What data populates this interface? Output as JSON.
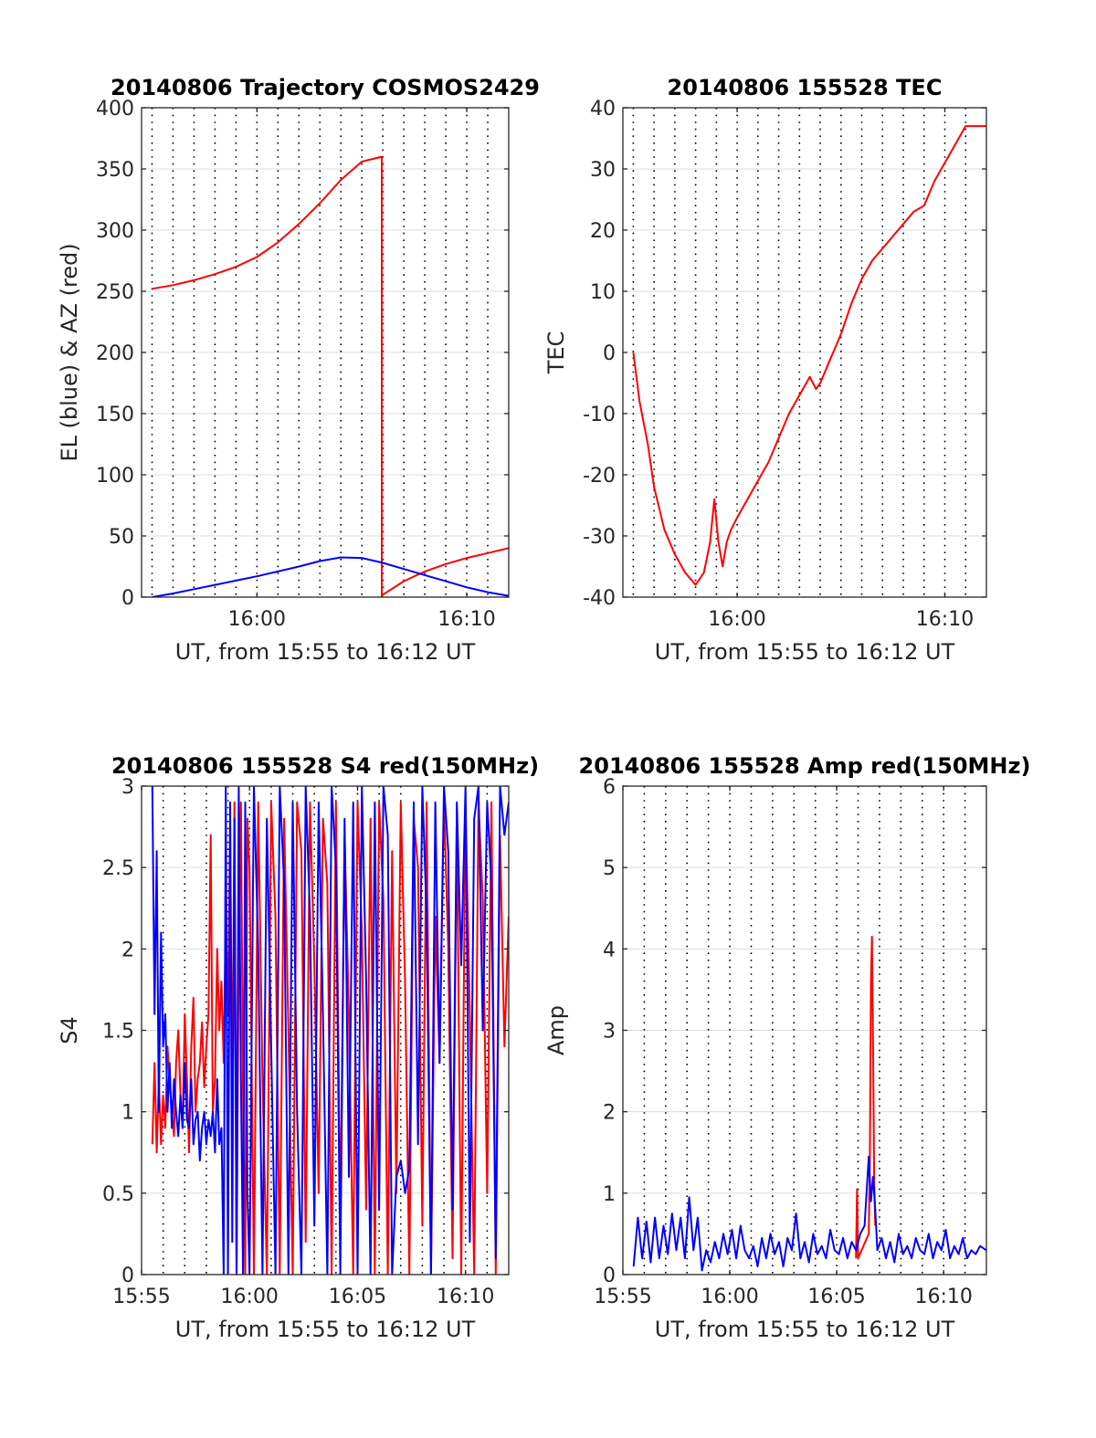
{
  "chart_data": [
    {
      "type": "line",
      "title": "20140806 Trajectory COSMOS2429",
      "xlabel": "UT, from 15:55 to 16:12 UT",
      "ylabel": "EL (blue) & AZ (red)",
      "xlim": [
        -0.5,
        17
      ],
      "ylim": [
        0,
        400
      ],
      "xticks": [
        5,
        15
      ],
      "xtick_labels": [
        "16:00",
        "16:10"
      ],
      "yticks": [
        0,
        50,
        100,
        150,
        200,
        250,
        300,
        350,
        400
      ],
      "ytick_labels": [
        "0",
        "50",
        "100",
        "150",
        "200",
        "250",
        "300",
        "350",
        "400"
      ],
      "grid": true,
      "series": [
        {
          "name": "AZ",
          "color": "#ff0000",
          "x": [
            0,
            1,
            2,
            3,
            4,
            5,
            6,
            7,
            8,
            9,
            10,
            10.95,
            10.95,
            11,
            12,
            13,
            14,
            15,
            16,
            17
          ],
          "y": [
            252,
            255,
            259,
            264,
            270,
            278,
            290,
            305,
            322,
            341,
            356,
            360,
            0,
            2,
            13,
            21,
            27,
            32,
            36,
            40
          ]
        },
        {
          "name": "EL",
          "color": "#0000ff",
          "x": [
            0,
            1,
            2,
            3,
            4,
            5,
            6,
            7,
            8,
            9,
            10,
            11,
            12,
            13,
            14,
            15,
            16,
            17
          ],
          "y": [
            0,
            3,
            6.5,
            10,
            13.5,
            17,
            21,
            25,
            29.5,
            32.5,
            32,
            28,
            23,
            18,
            13,
            8,
            4,
            1
          ]
        }
      ]
    },
    {
      "type": "line",
      "title": "20140806 155528 TEC",
      "xlabel": "UT, from 15:55 to 16:12 UT",
      "ylabel": "TEC",
      "xlim": [
        -0.5,
        17
      ],
      "ylim": [
        -40,
        40
      ],
      "xticks": [
        5,
        15
      ],
      "xtick_labels": [
        "16:00",
        "16:10"
      ],
      "yticks": [
        -40,
        -30,
        -20,
        -10,
        0,
        10,
        20,
        30,
        40
      ],
      "ytick_labels": [
        "-40",
        "-30",
        "-20",
        "-10",
        "0",
        "10",
        "20",
        "30",
        "40"
      ],
      "grid": true,
      "series": [
        {
          "color": "#ff0000",
          "x": [
            0,
            0.3,
            0.7,
            1.0,
            1.5,
            2.0,
            2.5,
            3.0,
            3.4,
            3.7,
            3.9,
            4.1,
            4.3,
            4.5,
            4.7,
            5.0,
            5.5,
            6.0,
            6.5,
            7.0,
            7.5,
            8.0,
            8.5,
            8.8,
            9.0,
            9.5,
            10.0,
            10.5,
            11.0,
            11.5,
            12.0,
            12.5,
            13.0,
            13.5,
            14.0,
            14.5,
            15.0,
            15.5,
            16.0,
            16.5,
            17.0
          ],
          "y": [
            0,
            -8,
            -15,
            -22,
            -29,
            -33,
            -36,
            -38,
            -36,
            -31,
            -24,
            -31,
            -35,
            -31,
            -29,
            -27,
            -24,
            -21,
            -18,
            -14,
            -10,
            -7,
            -4,
            -6,
            -5,
            -1,
            3,
            8,
            12,
            15,
            17,
            19,
            21,
            23,
            24,
            28,
            31,
            34,
            37,
            37,
            37
          ]
        }
      ]
    },
    {
      "type": "line",
      "title": "20140806 155528 S4 red(150MHz)",
      "xlabel": "UT, from 15:55 to 16:12 UT",
      "ylabel": "S4",
      "xlim": [
        0,
        17
      ],
      "ylim": [
        0,
        3
      ],
      "xticks": [
        0,
        5,
        10,
        15
      ],
      "xtick_labels": [
        "15:55",
        "16:00",
        "16:05",
        "16:10"
      ],
      "yticks": [
        0,
        0.5,
        1,
        1.5,
        2,
        2.5,
        3
      ],
      "ytick_labels": [
        "0",
        "0.5",
        "1",
        "1.5",
        "2",
        "2.5",
        "3"
      ],
      "grid": true,
      "series": [
        {
          "color": "#ff0000",
          "x": [
            0.5,
            0.6,
            0.7,
            0.8,
            0.9,
            1.0,
            1.1,
            1.2,
            1.3,
            1.4,
            1.5,
            1.6,
            1.7,
            1.8,
            1.9,
            2.0,
            2.1,
            2.2,
            2.3,
            2.4,
            2.5,
            2.6,
            2.7,
            2.8,
            2.9,
            3.0,
            3.1,
            3.2,
            3.3,
            3.4,
            3.5,
            3.6,
            3.7,
            3.8,
            3.9,
            4.0,
            4.1,
            4.2,
            4.3,
            4.4,
            4.5,
            4.6,
            4.7,
            4.8,
            4.9,
            5.0,
            5.2,
            5.4,
            5.6,
            5.8,
            6.0,
            6.2,
            6.4,
            6.6,
            6.8,
            7.0,
            7.2,
            7.4,
            7.6,
            7.8,
            8.0,
            8.2,
            8.4,
            8.6,
            8.8,
            9.0,
            9.2,
            9.4,
            9.6,
            9.8,
            10.0,
            10.2,
            10.4,
            10.6,
            10.8,
            11.0,
            11.2,
            11.4,
            11.6,
            11.8,
            12.0,
            12.2,
            12.4,
            12.6,
            12.8,
            13.0,
            13.2,
            13.4,
            13.6,
            13.8,
            14.0,
            14.2,
            14.4,
            14.6,
            14.8,
            15.0,
            15.2,
            15.4,
            15.6,
            15.8,
            16.0,
            16.2,
            16.4,
            16.6,
            16.8,
            17.0
          ],
          "y": [
            0.8,
            1.3,
            0.75,
            1.2,
            0.8,
            1.1,
            0.9,
            1.4,
            1.2,
            1.0,
            0.85,
            1.3,
            1.5,
            1.1,
            0.9,
            1.6,
            1.2,
            0.75,
            1.4,
            1.7,
            1.0,
            1.2,
            1.3,
            1.55,
            1.15,
            1.4,
            1.6,
            2.7,
            1.0,
            1.2,
            2.0,
            1.5,
            1.8,
            1.3,
            2.2,
            1.6,
            2.8,
            1.0,
            2.9,
            0,
            2.0,
            2.9,
            1.1,
            0,
            2.8,
            2.5,
            0,
            2.9,
            1.2,
            0,
            2.9,
            2.2,
            0,
            2.8,
            1.5,
            0,
            2.9,
            2.6,
            0.2,
            2.9,
            1.9,
            0.5,
            2.8,
            2.4,
            0,
            2.9,
            0.3,
            2.7,
            1.6,
            0,
            2.9,
            2.1,
            0.4,
            2.8,
            0,
            2.9,
            2.3,
            0,
            2.6,
            0.5,
            2.9,
            1.8,
            0,
            2.8,
            2.5,
            0.3,
            2.9,
            0,
            2.2,
            1.3,
            2.9,
            2.0,
            0.1,
            2.8,
            0,
            2.9,
            1.6,
            0,
            2.9,
            2.3,
            0.5,
            2.9,
            0,
            2.7,
            1.4,
            2.2
          ]
        },
        {
          "color": "#0000ff",
          "x": [
            0.5,
            0.6,
            0.7,
            0.8,
            0.9,
            1.0,
            1.1,
            1.2,
            1.3,
            1.4,
            1.5,
            1.6,
            1.7,
            1.8,
            1.9,
            2.0,
            2.1,
            2.2,
            2.3,
            2.4,
            2.5,
            2.6,
            2.7,
            2.8,
            2.9,
            3.0,
            3.1,
            3.2,
            3.3,
            3.4,
            3.5,
            3.6,
            3.7,
            3.8,
            3.9,
            4.0,
            4.1,
            4.2,
            4.3,
            4.4,
            4.5,
            4.6,
            4.7,
            4.8,
            4.9,
            5.0,
            5.2,
            5.4,
            5.6,
            5.8,
            6.0,
            6.2,
            6.4,
            6.6,
            6.8,
            7.0,
            7.2,
            7.4,
            7.6,
            7.8,
            8.0,
            8.2,
            8.4,
            8.6,
            8.8,
            9.0,
            9.2,
            9.4,
            9.6,
            9.8,
            10.0,
            10.2,
            10.4,
            10.6,
            10.8,
            11.0,
            11.2,
            11.4,
            11.6,
            11.8,
            12.0,
            12.2,
            12.4,
            12.6,
            12.8,
            13.0,
            13.2,
            13.4,
            13.6,
            13.8,
            14.0,
            14.2,
            14.4,
            14.6,
            14.8,
            15.0,
            15.2,
            15.4,
            15.6,
            15.8,
            16.0,
            16.2,
            16.4,
            16.6,
            16.8,
            17.0
          ],
          "y": [
            3.0,
            1.6,
            2.6,
            1.0,
            2.1,
            1.4,
            1.6,
            1.0,
            1.3,
            0.9,
            1.2,
            1.0,
            0.85,
            1.1,
            0.9,
            1.3,
            0.95,
            0.9,
            1.2,
            0.8,
            0.95,
            1.0,
            0.7,
            0.9,
            1.0,
            0.8,
            0.95,
            0.85,
            1.0,
            0.75,
            1.2,
            0.8,
            0.9,
            0,
            3.0,
            0,
            2.9,
            0.2,
            2.8,
            0,
            3.0,
            1.2,
            0,
            2.9,
            0.5,
            0,
            3.0,
            2.0,
            0,
            2.8,
            1.4,
            0,
            3.0,
            2.4,
            0,
            2.9,
            1.0,
            0,
            3.0,
            2.2,
            0.3,
            2.9,
            1.6,
            0,
            3.0,
            2.5,
            0,
            2.8,
            0.6,
            2.9,
            0,
            3.0,
            1.8,
            0,
            2.9,
            0.4,
            3.0,
            2.7,
            0,
            0.6,
            0.7,
            0.5,
            0.65,
            2.9,
            0.8,
            3.0,
            2.2,
            0,
            2.9,
            1.3,
            3.0,
            2.6,
            0.4,
            2.9,
            1.9,
            3.0,
            0.2,
            2.8,
            3.0,
            1.5,
            2.9,
            2.4,
            0.1,
            3.0,
            2.7,
            2.9
          ]
        }
      ]
    },
    {
      "type": "line",
      "title": "20140806 155528 Amp red(150MHz)",
      "xlabel": "UT, from 15:55 to 16:12 UT",
      "ylabel": "Amp",
      "xlim": [
        0,
        17
      ],
      "ylim": [
        0,
        6
      ],
      "xticks": [
        0,
        5,
        10,
        15
      ],
      "xtick_labels": [
        "15:55",
        "16:00",
        "16:05",
        "16:10"
      ],
      "yticks": [
        0,
        1,
        2,
        3,
        4,
        5,
        6
      ],
      "ytick_labels": [
        "0",
        "1",
        "2",
        "3",
        "4",
        "5",
        "6"
      ],
      "grid": true,
      "series": [
        {
          "color": "#ff0000",
          "x": [
            10.9,
            10.95,
            11.0,
            11.5,
            11.55,
            11.6,
            11.65,
            11.7,
            11.75,
            11.8
          ],
          "y": [
            0.2,
            1.05,
            0.2,
            0.5,
            1.4,
            3.6,
            4.15,
            2.8,
            1.2,
            0.6
          ]
        },
        {
          "color": "#0000ff",
          "x": [
            0.5,
            0.7,
            0.9,
            1.1,
            1.3,
            1.5,
            1.7,
            1.9,
            2.1,
            2.3,
            2.5,
            2.7,
            2.9,
            3.1,
            3.3,
            3.5,
            3.7,
            3.9,
            4.1,
            4.3,
            4.5,
            4.7,
            4.9,
            5.1,
            5.3,
            5.5,
            5.7,
            5.9,
            6.1,
            6.3,
            6.5,
            6.7,
            6.9,
            7.1,
            7.3,
            7.5,
            7.7,
            7.9,
            8.1,
            8.3,
            8.5,
            8.7,
            8.9,
            9.1,
            9.3,
            9.5,
            9.7,
            9.9,
            10.1,
            10.3,
            10.5,
            10.7,
            10.9,
            11.1,
            11.3,
            11.5,
            11.6,
            11.7,
            11.8,
            11.9,
            12.1,
            12.3,
            12.5,
            12.7,
            12.9,
            13.1,
            13.3,
            13.5,
            13.7,
            13.9,
            14.1,
            14.3,
            14.5,
            14.7,
            14.9,
            15.1,
            15.3,
            15.5,
            15.7,
            15.9,
            16.1,
            16.3,
            16.5,
            16.7,
            17.0
          ],
          "y": [
            0.1,
            0.7,
            0.2,
            0.65,
            0.15,
            0.7,
            0.2,
            0.6,
            0.25,
            0.75,
            0.3,
            0.7,
            0.2,
            0.95,
            0.3,
            0.7,
            0.05,
            0.3,
            0.15,
            0.4,
            0.2,
            0.5,
            0.25,
            0.55,
            0.2,
            0.6,
            0.3,
            0.2,
            0.35,
            0.1,
            0.45,
            0.2,
            0.5,
            0.25,
            0.4,
            0.1,
            0.45,
            0.3,
            0.75,
            0.2,
            0.4,
            0.15,
            0.5,
            0.25,
            0.35,
            0.2,
            0.55,
            0.3,
            0.25,
            0.45,
            0.2,
            0.4,
            0.3,
            0.5,
            0.6,
            1.45,
            0.9,
            1.2,
            0.8,
            0.3,
            0.45,
            0.2,
            0.4,
            0.15,
            0.5,
            0.25,
            0.35,
            0.2,
            0.45,
            0.3,
            0.25,
            0.5,
            0.2,
            0.4,
            0.3,
            0.55,
            0.2,
            0.35,
            0.25,
            0.45,
            0.2,
            0.3,
            0.25,
            0.35,
            0.3
          ]
        }
      ]
    }
  ]
}
